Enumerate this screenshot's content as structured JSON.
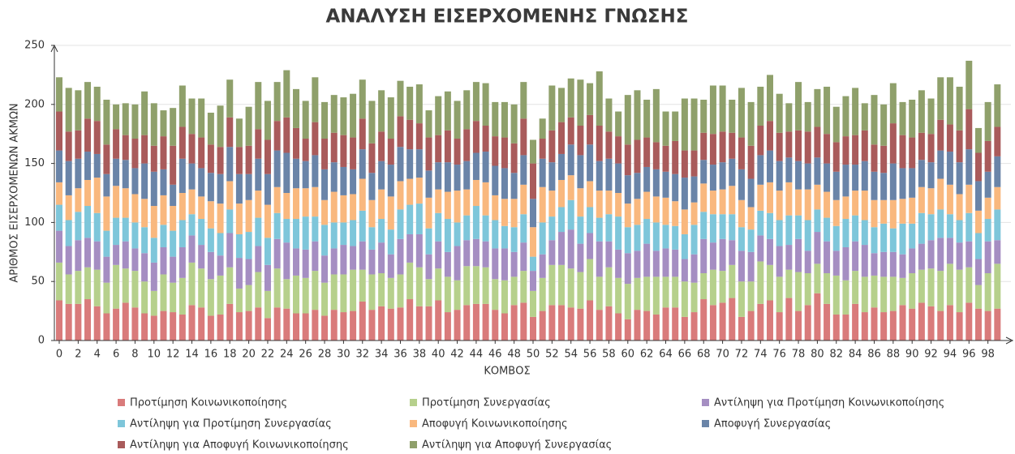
{
  "chart_data": {
    "type": "stacked_bar",
    "title": "ΑΝΑΛΥΣΗ ΕΙΣΕΡΧΟΜΕΝΗΣ ΓΝΩΣΗΣ",
    "x_label": "ΚΟΜΒΟΣ",
    "y_label": "ΑΡΙΘΜΟΣ ΕΙΣΕΡΧΟΜΕΝΩΝ ΑΚΜΩΝ",
    "categories": [
      0,
      null,
      2,
      null,
      4,
      null,
      6,
      null,
      8,
      null,
      10,
      null,
      12,
      null,
      14,
      null,
      16,
      null,
      18,
      null,
      20,
      null,
      22,
      null,
      24,
      null,
      26,
      null,
      28,
      null,
      30,
      null,
      32,
      null,
      34,
      null,
      36,
      null,
      38,
      null,
      40,
      null,
      42,
      null,
      44,
      null,
      46,
      null,
      48,
      null,
      50,
      null,
      52,
      null,
      54,
      null,
      56,
      null,
      58,
      null,
      60,
      null,
      62,
      null,
      64,
      null,
      66,
      null,
      68,
      null,
      70,
      null,
      72,
      null,
      74,
      null,
      76,
      null,
      78,
      null,
      80,
      null,
      82,
      null,
      84,
      null,
      86,
      null,
      88,
      null,
      90,
      null,
      92,
      null,
      94,
      null,
      96,
      null,
      98,
      null
    ],
    "ylim": [
      0,
      250
    ],
    "yticks": [
      0,
      50,
      100,
      150,
      200,
      250
    ],
    "grid": true,
    "legend": "bottom",
    "series": [
      {
        "name": "Προτίμηση Κοινωνικοποίησης",
        "color": "#d97b7b",
        "values": [
          34,
          31,
          31,
          35,
          29,
          23,
          27,
          32,
          28,
          23,
          21,
          25,
          24,
          22,
          30,
          28,
          21,
          22,
          31,
          24,
          25,
          28,
          19,
          28,
          27,
          23,
          23,
          26,
          21,
          26,
          24,
          25,
          33,
          26,
          29,
          27,
          28,
          35,
          29,
          29,
          34,
          24,
          26,
          30,
          31,
          31,
          26,
          23,
          30,
          32,
          20,
          25,
          30,
          30,
          28,
          27,
          34,
          26,
          29,
          23,
          18,
          26,
          25,
          22,
          28,
          28,
          20,
          24,
          35,
          30,
          32,
          36,
          20,
          25,
          31,
          34,
          24,
          36,
          25,
          30,
          40,
          31,
          22,
          22,
          31,
          24,
          28,
          24,
          25,
          30,
          27,
          32,
          29,
          25,
          30,
          24,
          32,
          27,
          25,
          27
        ]
      },
      {
        "name": "Προτίμηση Συνεργασίας",
        "color": "#b6d08c",
        "values": [
          32,
          25,
          28,
          27,
          31,
          26,
          37,
          29,
          31,
          27,
          21,
          31,
          25,
          31,
          36,
          33,
          31,
          33,
          31,
          20,
          22,
          30,
          23,
          33,
          25,
          32,
          30,
          33,
          28,
          30,
          32,
          35,
          27,
          30,
          28,
          26,
          28,
          31,
          33,
          23,
          27,
          30,
          25,
          33,
          32,
          31,
          26,
          28,
          24,
          27,
          22,
          28,
          34,
          34,
          33,
          31,
          35,
          28,
          33,
          30,
          30,
          27,
          29,
          32,
          26,
          26,
          30,
          25,
          22,
          30,
          27,
          28,
          30,
          25,
          36,
          30,
          30,
          24,
          33,
          27,
          25,
          26,
          33,
          29,
          28,
          30,
          27,
          30,
          29,
          23,
          30,
          28,
          32,
          34,
          35,
          36,
          30,
          20,
          32,
          38
        ]
      },
      {
        "name": "Αντίληψη για Προτίμηση Κοινωνικοποίησης",
        "color": "#a58ec2",
        "values": [
          27,
          24,
          26,
          25,
          24,
          22,
          17,
          23,
          19,
          24,
          24,
          23,
          22,
          26,
          23,
          20,
          23,
          17,
          29,
          26,
          22,
          22,
          22,
          25,
          31,
          23,
          24,
          25,
          23,
          22,
          25,
          20,
          24,
          21,
          26,
          20,
          30,
          24,
          28,
          21,
          23,
          21,
          29,
          22,
          23,
          22,
          26,
          27,
          21,
          24,
          17,
          20,
          21,
          28,
          33,
          24,
          22,
          30,
          22,
          24,
          26,
          23,
          28,
          22,
          24,
          23,
          19,
          24,
          29,
          23,
          27,
          21,
          26,
          25,
          22,
          22,
          26,
          21,
          28,
          19,
          27,
          27,
          21,
          28,
          25,
          27,
          19,
          21,
          21,
          20,
          21,
          22,
          24,
          28,
          22,
          23,
          22,
          22,
          27,
          20
        ]
      },
      {
        "name": "Αντίληψη για Προτίμηση Συνεργασίας",
        "color": "#7ec6da",
        "values": [
          22,
          22,
          24,
          27,
          24,
          22,
          23,
          20,
          22,
          22,
          21,
          19,
          22,
          23,
          18,
          22,
          20,
          19,
          20,
          20,
          23,
          24,
          23,
          22,
          20,
          25,
          28,
          21,
          26,
          22,
          19,
          22,
          26,
          19,
          20,
          21,
          25,
          25,
          26,
          22,
          24,
          28,
          20,
          21,
          28,
          22,
          24,
          19,
          21,
          24,
          12,
          27,
          20,
          21,
          25,
          23,
          22,
          20,
          23,
          28,
          22,
          22,
          21,
          24,
          20,
          20,
          21,
          25,
          23,
          24,
          21,
          22,
          20,
          19,
          21,
          22,
          22,
          25,
          20,
          26,
          19,
          20,
          21,
          24,
          22,
          21,
          22,
          24,
          20,
          26,
          21,
          26,
          22,
          24,
          20,
          19,
          24,
          22,
          19,
          26
        ]
      },
      {
        "name": "Αποφυγή Κοινωνικοποίησης",
        "color": "#f9b87e",
        "values": [
          19,
          21,
          20,
          22,
          30,
          29,
          27,
          25,
          24,
          24,
          27,
          25,
          21,
          23,
          21,
          19,
          23,
          25,
          24,
          26,
          27,
          23,
          28,
          22,
          22,
          26,
          24,
          25,
          21,
          26,
          23,
          22,
          27,
          23,
          25,
          28,
          24,
          22,
          22,
          26,
          20,
          23,
          27,
          22,
          22,
          28,
          21,
          23,
          24,
          25,
          25,
          30,
          22,
          23,
          21,
          24,
          22,
          23,
          20,
          20,
          20,
          22,
          23,
          22,
          23,
          21,
          21,
          19,
          24,
          20,
          21,
          24,
          23,
          19,
          22,
          26,
          25,
          28,
          22,
          26,
          21,
          22,
          22,
          19,
          21,
          25,
          23,
          20,
          24,
          21,
          22,
          22,
          22,
          26,
          25,
          22,
          24,
          19,
          18,
          19
        ]
      },
      {
        "name": "Αποφυγή Συνεργασίας",
        "color": "#6a84a8",
        "values": [
          27,
          29,
          25,
          24,
          20,
          19,
          23,
          24,
          22,
          30,
          29,
          22,
          18,
          29,
          22,
          24,
          24,
          25,
          29,
          25,
          22,
          27,
          26,
          31,
          34,
          25,
          23,
          27,
          26,
          25,
          24,
          21,
          25,
          23,
          24,
          27,
          29,
          25,
          24,
          23,
          23,
          25,
          22,
          24,
          23,
          26,
          25,
          26,
          22,
          25,
          24,
          24,
          24,
          22,
          26,
          28,
          31,
          25,
          27,
          25,
          24,
          22,
          21,
          23,
          22,
          23,
          27,
          22,
          20,
          22,
          23,
          23,
          26,
          24,
          25,
          27,
          25,
          21,
          24,
          22,
          23,
          24,
          24,
          27,
          22,
          25,
          24,
          23,
          31,
          26,
          25,
          23,
          22,
          24,
          28,
          27,
          30,
          25,
          22,
          26
        ]
      },
      {
        "name": "Αντίληψη για Αποφυγή Κοινωνικοποίησης",
        "color": "#a95b5b",
        "values": [
          33,
          25,
          24,
          28,
          28,
          25,
          25,
          21,
          25,
          24,
          22,
          28,
          33,
          27,
          25,
          26,
          24,
          23,
          25,
          23,
          24,
          25,
          29,
          25,
          30,
          26,
          19,
          28,
          26,
          25,
          27,
          27,
          26,
          25,
          25,
          22,
          26,
          25,
          22,
          28,
          23,
          27,
          22,
          27,
          27,
          22,
          25,
          26,
          25,
          31,
          30,
          17,
          27,
          27,
          23,
          25,
          25,
          30,
          23,
          23,
          26,
          28,
          25,
          23,
          22,
          28,
          23,
          22,
          23,
          26,
          26,
          22,
          27,
          28,
          25,
          25,
          24,
          22,
          26,
          27,
          26,
          25,
          25,
          24,
          25,
          26,
          23,
          23,
          34,
          28,
          26,
          23,
          24,
          26,
          23,
          27,
          34,
          24,
          26,
          25
        ]
      },
      {
        "name": "Αντίληψη για Αποφυγή Συνεργασίας",
        "color": "#8fa06b",
        "values": [
          29,
          37,
          34,
          31,
          29,
          38,
          21,
          27,
          29,
          37,
          36,
          22,
          32,
          35,
          30,
          33,
          27,
          35,
          32,
          24,
          33,
          40,
          33,
          33,
          40,
          33,
          32,
          38,
          31,
          32,
          32,
          37,
          33,
          36,
          35,
          35,
          30,
          28,
          33,
          23,
          33,
          33,
          32,
          33,
          33,
          36,
          29,
          30,
          33,
          31,
          20,
          17,
          38,
          29,
          33,
          39,
          27,
          46,
          28,
          21,
          42,
          42,
          32,
          45,
          29,
          25,
          44,
          44,
          28,
          41,
          39,
          28,
          42,
          37,
          33,
          39,
          33,
          24,
          41,
          25,
          32,
          40,
          30,
          34,
          40,
          23,
          42,
          35,
          34,
          28,
          32,
          36,
          30,
          36,
          40,
          37,
          41,
          21,
          33,
          36
        ]
      }
    ]
  }
}
